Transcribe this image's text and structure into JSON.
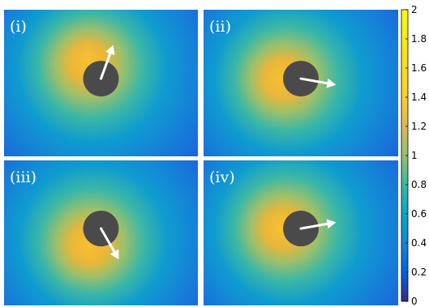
{
  "chart_data": {
    "type": "heatmap",
    "layout": "2x2 panels with shared colorbar on the right",
    "colormap": "parula",
    "panels": [
      {
        "label": "(i)",
        "arrow_direction_deg": 70,
        "hot_side": "upper-left"
      },
      {
        "label": "(ii)",
        "arrow_direction_deg": -10,
        "hot_side": "left"
      },
      {
        "label": "(iii)",
        "arrow_direction_deg": -60,
        "hot_side": "lower-left"
      },
      {
        "label": "(iv)",
        "arrow_direction_deg": 10,
        "hot_side": "left"
      }
    ],
    "colorbar": {
      "range": [
        0,
        2
      ],
      "ticks": [
        0,
        0.2,
        0.4,
        0.6,
        0.8,
        1,
        1.2,
        1.4,
        1.6,
        1.8,
        2
      ],
      "tick_labels": [
        "0",
        "0.2",
        "0.4",
        "0.6",
        "0.8",
        "1",
        "1.2",
        "1.4",
        "1.6",
        "1.8",
        "2"
      ]
    },
    "colors": {
      "disk": "#4a4a4a",
      "arrow": "#ffffff",
      "low": "#352a87",
      "high": "#f9fb0e"
    }
  }
}
